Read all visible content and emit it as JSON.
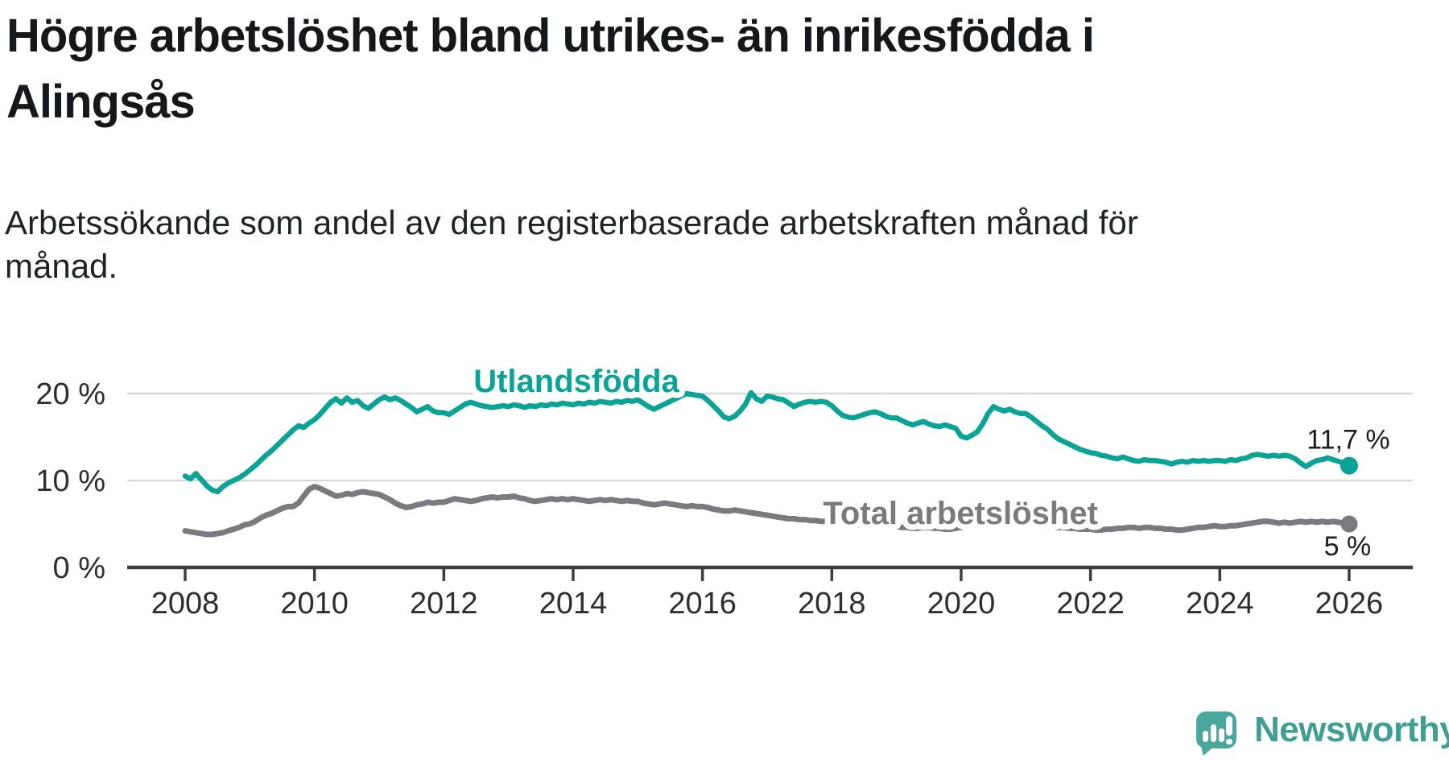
{
  "header": {
    "title": "Högre arbetslöshet bland utrikes- än inrikesfödda i Alingsås",
    "subtitle": "Arbetssökande som andel av den registerbaserade arbetskraften månad för månad."
  },
  "branding": {
    "logo_text": "Newsworthy",
    "logo_icon": "speech-bubble-with-bar-chart-and-exclamation"
  },
  "colors": {
    "accent_teal": "#0aa396",
    "series_gray": "#7b7b7f",
    "brand_bubble": "#49a79b",
    "brand_text": "#3f9f92",
    "title_text": "#14181a",
    "axis_text": "#2e2e2e",
    "gridline": "#d9d9d9",
    "axis_line": "#3d3d3d",
    "background": "#ffffff"
  },
  "chart_data": {
    "type": "line",
    "title": "Högre arbetslöshet bland utrikes- än inrikesfödda i Alingsås",
    "xlabel": "",
    "ylabel": "Arbetssökande som andel av den registerbaserade arbetskraften",
    "unit": "%",
    "grid": "horizontal-only",
    "legend_position": "inline-labels",
    "axis": {
      "x_min": 2008,
      "x_max": 2026.33,
      "y_min": 0,
      "y_max": 22
    },
    "x_ticks": [
      2008,
      2010,
      2012,
      2014,
      2016,
      2018,
      2020,
      2022,
      2024,
      2026
    ],
    "y_ticks": [
      {
        "value": 0,
        "label": "0 %"
      },
      {
        "value": 10,
        "label": "10 %"
      },
      {
        "value": 20,
        "label": "20 %"
      }
    ],
    "frequency": "monthly",
    "series": [
      {
        "id": "utlandsfodda",
        "name": "Utlandsfödda",
        "color": "#0aa396",
        "stroke_width": 6.5,
        "dot_radius": 11,
        "end_label": "11,7 %",
        "end_value": 11.7,
        "label_anchor": {
          "year": 2014.05,
          "value": 21.5
        },
        "end_label_offset": {
          "dx": -1,
          "dy": -21
        },
        "values": [
          10.5,
          10.2,
          10.8,
          10.1,
          9.4,
          8.9,
          8.7,
          9.3,
          9.7,
          10.0,
          10.3,
          10.7,
          11.2,
          11.7,
          12.3,
          12.9,
          13.4,
          14.0,
          14.6,
          15.2,
          15.8,
          16.3,
          16.1,
          16.6,
          17.0,
          17.6,
          18.3,
          19.0,
          19.4,
          18.9,
          19.5,
          19.0,
          19.2,
          18.6,
          18.3,
          18.8,
          19.3,
          19.6,
          19.3,
          19.5,
          19.2,
          18.8,
          18.4,
          17.9,
          18.2,
          18.5,
          18.0,
          17.8,
          17.8,
          17.6,
          18.0,
          18.4,
          18.8,
          19.0,
          18.8,
          18.6,
          18.5,
          18.4,
          18.5,
          18.6,
          18.5,
          18.7,
          18.6,
          18.4,
          18.6,
          18.5,
          18.7,
          18.6,
          18.8,
          18.7,
          18.9,
          18.8,
          18.7,
          18.9,
          18.8,
          19.0,
          18.9,
          19.1,
          19.0,
          18.9,
          19.1,
          19.0,
          19.2,
          19.1,
          19.3,
          18.9,
          18.5,
          18.2,
          18.5,
          18.8,
          19.1,
          19.4,
          19.7,
          20.0,
          19.9,
          19.8,
          19.7,
          19.2,
          18.6,
          18.0,
          17.3,
          17.1,
          17.4,
          18.0,
          18.8,
          20.1,
          19.4,
          19.1,
          19.7,
          19.6,
          19.4,
          19.3,
          18.9,
          18.5,
          18.8,
          19.0,
          19.1,
          19.0,
          19.1,
          19.0,
          18.6,
          18.0,
          17.5,
          17.3,
          17.2,
          17.4,
          17.6,
          17.8,
          17.9,
          17.7,
          17.4,
          17.2,
          17.2,
          16.9,
          16.6,
          16.4,
          16.6,
          16.8,
          16.5,
          16.3,
          16.2,
          16.4,
          16.2,
          16.0,
          15.1,
          14.9,
          15.2,
          15.6,
          16.5,
          17.7,
          18.5,
          18.2,
          18.0,
          18.2,
          17.9,
          17.7,
          17.7,
          17.3,
          16.8,
          16.3,
          15.9,
          15.3,
          14.8,
          14.5,
          14.2,
          13.9,
          13.6,
          13.4,
          13.2,
          13.1,
          12.9,
          12.8,
          12.6,
          12.5,
          12.7,
          12.5,
          12.3,
          12.2,
          12.4,
          12.3,
          12.3,
          12.2,
          12.1,
          11.9,
          12.1,
          12.2,
          12.1,
          12.3,
          12.2,
          12.3,
          12.2,
          12.3,
          12.3,
          12.2,
          12.4,
          12.3,
          12.5,
          12.6,
          12.9,
          13.0,
          12.9,
          12.8,
          12.9,
          12.8,
          12.9,
          12.8,
          12.5,
          12.0,
          11.6,
          12.0,
          12.3,
          12.4,
          12.6,
          12.4,
          12.2,
          12.0,
          11.7
        ]
      },
      {
        "id": "total-arbetsloshet",
        "name": "Total arbetslöshet",
        "color": "#7b7b7f",
        "stroke_width": 7,
        "dot_radius": 10.5,
        "end_label": "5 %",
        "end_value": 5.0,
        "label_anchor": {
          "year": 2019.99,
          "value": 6.3
        },
        "end_label_offset": {
          "dx": -2,
          "dy": 39
        },
        "values": [
          4.2,
          4.1,
          4.0,
          3.9,
          3.8,
          3.8,
          3.9,
          4.0,
          4.2,
          4.4,
          4.6,
          4.9,
          5.0,
          5.3,
          5.7,
          6.0,
          6.2,
          6.5,
          6.8,
          7.0,
          7.0,
          7.4,
          8.2,
          9.0,
          9.3,
          9.1,
          8.8,
          8.5,
          8.2,
          8.3,
          8.5,
          8.4,
          8.6,
          8.7,
          8.6,
          8.5,
          8.4,
          8.1,
          7.8,
          7.4,
          7.1,
          6.9,
          7.0,
          7.2,
          7.3,
          7.5,
          7.4,
          7.5,
          7.5,
          7.7,
          7.9,
          7.8,
          7.7,
          7.6,
          7.7,
          7.9,
          8.0,
          8.1,
          8.0,
          8.1,
          8.1,
          8.2,
          8.0,
          7.9,
          7.7,
          7.6,
          7.7,
          7.8,
          7.9,
          7.8,
          7.9,
          7.8,
          7.9,
          7.8,
          7.7,
          7.6,
          7.7,
          7.8,
          7.7,
          7.8,
          7.7,
          7.6,
          7.7,
          7.6,
          7.6,
          7.4,
          7.3,
          7.2,
          7.3,
          7.4,
          7.3,
          7.2,
          7.1,
          7.0,
          7.1,
          7.0,
          7.0,
          6.9,
          6.7,
          6.6,
          6.5,
          6.5,
          6.6,
          6.5,
          6.4,
          6.3,
          6.2,
          6.1,
          6.0,
          5.9,
          5.8,
          5.7,
          5.6,
          5.6,
          5.5,
          5.5,
          5.4,
          5.4,
          5.3,
          5.3,
          5.2,
          5.1,
          5.1,
          5.0,
          5.0,
          4.9,
          4.9,
          5.0,
          4.9,
          4.8,
          4.8,
          4.7,
          4.7,
          4.6,
          4.6,
          4.5,
          4.5,
          4.6,
          4.6,
          4.5,
          4.5,
          4.4,
          4.4,
          4.5,
          4.6,
          4.7,
          5.0,
          5.4,
          5.6,
          5.7,
          5.8,
          5.7,
          5.6,
          5.5,
          5.4,
          5.3,
          5.2,
          5.1,
          5.0,
          4.9,
          4.8,
          4.7,
          4.6,
          4.6,
          4.5,
          4.5,
          4.4,
          4.4,
          4.4,
          4.3,
          4.3,
          4.4,
          4.4,
          4.5,
          4.5,
          4.6,
          4.6,
          4.5,
          4.6,
          4.6,
          4.5,
          4.5,
          4.4,
          4.4,
          4.3,
          4.3,
          4.4,
          4.5,
          4.6,
          4.6,
          4.7,
          4.8,
          4.7,
          4.7,
          4.8,
          4.8,
          4.9,
          5.0,
          5.1,
          5.2,
          5.3,
          5.3,
          5.2,
          5.1,
          5.2,
          5.1,
          5.2,
          5.3,
          5.2,
          5.3,
          5.2,
          5.3,
          5.2,
          5.3,
          5.2,
          5.1,
          5.0
        ]
      }
    ]
  }
}
